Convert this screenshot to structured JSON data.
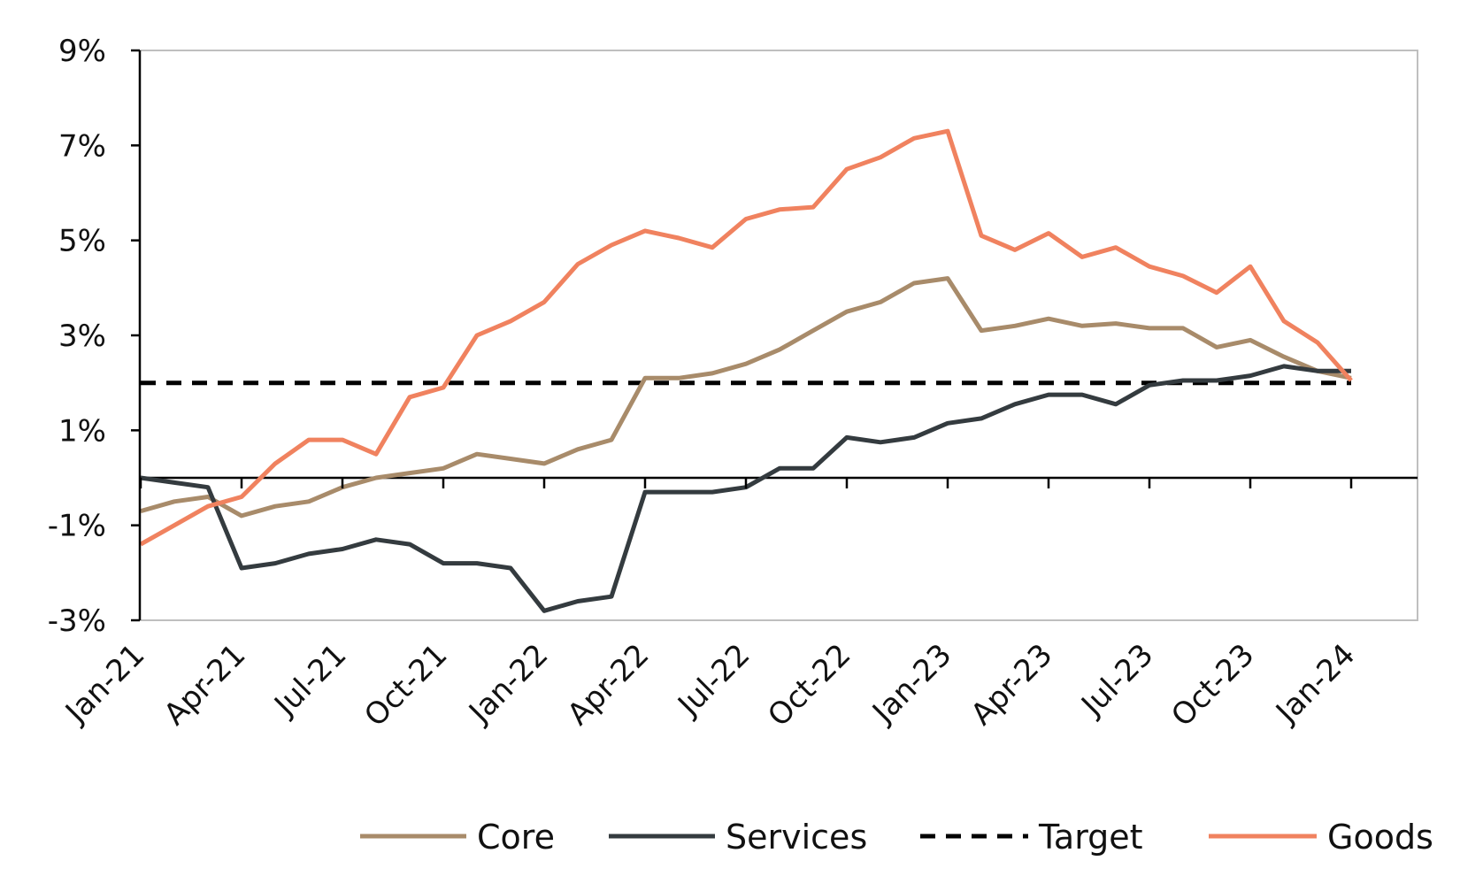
{
  "chart_data": {
    "type": "line",
    "title": "",
    "xlabel": "",
    "ylabel": "",
    "ylim": [
      -3,
      9
    ],
    "y_ticks": [
      "9%",
      "7%",
      "5%",
      "3%",
      "1%",
      "-1%",
      "-3%"
    ],
    "y_tick_values": [
      9,
      7,
      5,
      3,
      1,
      -1,
      -3
    ],
    "x_tick_labels": [
      "Jan-21",
      "Apr-21",
      "Jul-21",
      "Oct-21",
      "Jan-22",
      "Apr-22",
      "Jul-22",
      "Oct-22",
      "Jan-23",
      "Apr-23",
      "Jul-23",
      "Oct-23",
      "Jan-24"
    ],
    "x_tick_indices": [
      0,
      3,
      6,
      9,
      12,
      15,
      18,
      21,
      24,
      27,
      30,
      33,
      36
    ],
    "x": [
      "Jan-21",
      "Feb-21",
      "Mar-21",
      "Apr-21",
      "May-21",
      "Jun-21",
      "Jul-21",
      "Aug-21",
      "Sep-21",
      "Oct-21",
      "Nov-21",
      "Dec-21",
      "Jan-22",
      "Feb-22",
      "Mar-22",
      "Apr-22",
      "May-22",
      "Jun-22",
      "Jul-22",
      "Aug-22",
      "Sep-22",
      "Oct-22",
      "Nov-22",
      "Dec-22",
      "Jan-23",
      "Feb-23",
      "Mar-23",
      "Apr-23",
      "May-23",
      "Jun-23",
      "Jul-23",
      "Aug-23",
      "Sep-23",
      "Oct-23",
      "Nov-23",
      "Dec-23",
      "Jan-24"
    ],
    "grid": false,
    "legend_position": "bottom-right",
    "series": [
      {
        "name": "Core",
        "color": "#A88B6A",
        "dash": "solid",
        "values": [
          -0.7,
          -0.5,
          -0.4,
          -0.8,
          -0.6,
          -0.5,
          -0.2,
          0.0,
          0.1,
          0.2,
          0.5,
          0.4,
          0.3,
          0.6,
          0.8,
          2.1,
          2.1,
          2.2,
          2.4,
          2.7,
          3.1,
          3.5,
          3.7,
          4.1,
          4.2,
          3.1,
          3.2,
          3.35,
          3.2,
          3.25,
          3.15,
          3.15,
          2.75,
          2.9,
          2.55,
          2.25,
          2.1
        ]
      },
      {
        "name": "Services",
        "color": "#343B3F",
        "dash": "solid",
        "values": [
          0.0,
          -0.1,
          -0.2,
          -1.9,
          -1.8,
          -1.6,
          -1.5,
          -1.3,
          -1.4,
          -1.8,
          -1.8,
          -1.9,
          -2.8,
          -2.6,
          -2.5,
          -0.3,
          -0.3,
          -0.3,
          -0.2,
          0.2,
          0.2,
          0.85,
          0.75,
          0.85,
          1.15,
          1.25,
          1.55,
          1.75,
          1.75,
          1.55,
          1.95,
          2.05,
          2.05,
          2.15,
          2.35,
          2.25,
          2.25
        ]
      },
      {
        "name": "Target",
        "color": "#000000",
        "dash": "dashed",
        "values": [
          2,
          2,
          2,
          2,
          2,
          2,
          2,
          2,
          2,
          2,
          2,
          2,
          2,
          2,
          2,
          2,
          2,
          2,
          2,
          2,
          2,
          2,
          2,
          2,
          2,
          2,
          2,
          2,
          2,
          2,
          2,
          2,
          2,
          2,
          2,
          2,
          2
        ]
      },
      {
        "name": "Goods",
        "color": "#F0825F",
        "dash": "solid",
        "values": [
          -1.4,
          -1.0,
          -0.6,
          -0.4,
          0.3,
          0.8,
          0.8,
          0.5,
          1.7,
          1.9,
          3.0,
          3.3,
          3.7,
          4.5,
          4.9,
          5.2,
          5.05,
          4.85,
          5.45,
          5.65,
          5.7,
          6.5,
          6.75,
          7.15,
          7.3,
          5.1,
          4.8,
          5.15,
          4.65,
          4.85,
          4.45,
          4.25,
          3.9,
          4.45,
          3.3,
          2.85,
          2.05
        ]
      }
    ]
  }
}
